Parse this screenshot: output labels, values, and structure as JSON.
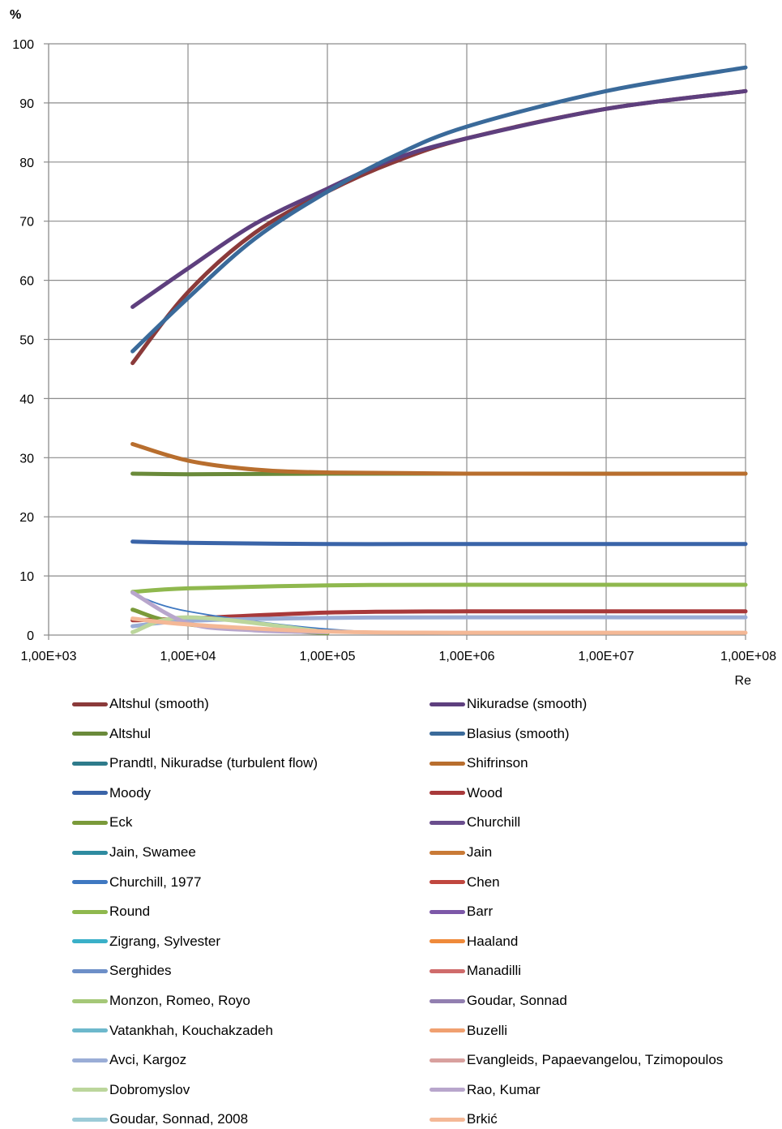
{
  "chart_data": {
    "type": "line",
    "title": "",
    "ylabel": "%",
    "xlabel": "Re",
    "xscale": "log",
    "xlim": [
      1000,
      100000000
    ],
    "ylim": [
      0,
      100
    ],
    "xticks": [
      "1,00E+03",
      "1,00E+04",
      "1,00E+05",
      "1,00E+06",
      "1,00E+07",
      "1,00E+08"
    ],
    "yticks": [
      "0",
      "10",
      "20",
      "30",
      "40",
      "50",
      "60",
      "70",
      "80",
      "90",
      "100"
    ],
    "grid": true,
    "legend_position": "bottom",
    "series": [
      {
        "name": "Altshul (smooth)",
        "color": "#8b3a3a",
        "x": [
          4000,
          10000,
          30000,
          100000,
          300000,
          1000000,
          10000000,
          100000000
        ],
        "y": [
          46,
          58,
          68,
          75,
          80,
          84,
          89,
          92
        ]
      },
      {
        "name": "Nikuradse (smooth)",
        "color": "#5e3f7e",
        "x": [
          4000,
          10000,
          30000,
          100000,
          300000,
          1000000,
          10000000,
          100000000
        ],
        "y": [
          55.5,
          62,
          69.5,
          75.5,
          80.5,
          84,
          89,
          92
        ]
      },
      {
        "name": "Altshul",
        "color": "#6a8a3a",
        "x": [
          4000,
          10000,
          100000,
          1000000,
          100000000
        ],
        "y": [
          27.3,
          27.2,
          27.3,
          27.3,
          27.3
        ]
      },
      {
        "name": "Blasius (smooth)",
        "color": "#3a6a9a",
        "x": [
          4000,
          10000,
          30000,
          100000,
          300000,
          1000000,
          10000000,
          100000000
        ],
        "y": [
          48,
          57,
          67,
          75,
          81,
          86,
          92,
          96
        ]
      },
      {
        "name": "Prandtl, Nikuradse (turbulent flow)",
        "color": "#2e7b8b",
        "x": [],
        "y": []
      },
      {
        "name": "Shifrinson",
        "color": "#b86e2e",
        "x": [
          4000,
          10000,
          30000,
          100000,
          1000000,
          100000000
        ],
        "y": [
          32.3,
          29.5,
          28,
          27.5,
          27.3,
          27.3
        ]
      },
      {
        "name": "Moody",
        "color": "#3a64a8",
        "x": [
          4000,
          10000,
          100000,
          1000000,
          100000000
        ],
        "y": [
          15.8,
          15.6,
          15.4,
          15.4,
          15.4
        ]
      },
      {
        "name": "Wood",
        "color": "#a8393a",
        "x": [
          4000,
          10000,
          100000,
          1000000,
          100000000
        ],
        "y": [
          2.5,
          2.8,
          3.8,
          4,
          4
        ]
      },
      {
        "name": "Eck",
        "color": "#7a9a3a",
        "x": [
          4000,
          10000,
          100000
        ],
        "y": [
          4.3,
          1.8,
          0.3
        ]
      },
      {
        "name": "Churchill",
        "color": "#6a4d8d",
        "x": [],
        "y": []
      },
      {
        "name": "Jain, Swamee",
        "color": "#2e8ba0",
        "x": [],
        "y": []
      },
      {
        "name": "Jain",
        "color": "#c97a36",
        "x": [],
        "y": []
      },
      {
        "name": "Churchill, 1977",
        "color": "#3f78c1",
        "x": [
          4000,
          10000,
          100000,
          1000000,
          100000000
        ],
        "y": [
          7,
          4,
          1,
          0.3,
          0.2
        ]
      },
      {
        "name": "Chen",
        "color": "#c0473f",
        "x": [],
        "y": []
      },
      {
        "name": "Round",
        "color": "#8fb84e",
        "x": [
          4000,
          10000,
          100000,
          1000000,
          100000000
        ],
        "y": [
          7.3,
          7.9,
          8.4,
          8.5,
          8.5
        ]
      },
      {
        "name": "Barr",
        "color": "#7d58a8",
        "x": [],
        "y": []
      },
      {
        "name": "Zigrang, Sylvester",
        "color": "#3ab0c8",
        "x": [],
        "y": []
      },
      {
        "name": "Haaland",
        "color": "#ef8a3a",
        "x": [],
        "y": []
      },
      {
        "name": "Serghides",
        "color": "#6d8fc8",
        "x": [],
        "y": []
      },
      {
        "name": "Manadilli",
        "color": "#cf6b6b",
        "x": [],
        "y": []
      },
      {
        "name": "Monzon, Romeo, Royo",
        "color": "#a5c878",
        "x": [],
        "y": []
      },
      {
        "name": "Goudar, Sonnad",
        "color": "#927fb0",
        "x": [],
        "y": []
      },
      {
        "name": "Vatankhah, Kouchakzadeh",
        "color": "#6db8cc",
        "x": [],
        "y": []
      },
      {
        "name": "Buzelli",
        "color": "#f0a070",
        "x": [],
        "y": []
      },
      {
        "name": "Avci, Kargoz",
        "color": "#9aadd6",
        "x": [
          4000,
          10000,
          100000,
          1000000,
          100000000
        ],
        "y": [
          1.5,
          2.4,
          2.9,
          3,
          3
        ]
      },
      {
        "name": "Evangleids, Papaevangelou, Tzimopoulos",
        "color": "#d8a09e",
        "x": [],
        "y": []
      },
      {
        "name": "Dobromyslov",
        "color": "#bcd69c",
        "x": [
          4000,
          10000,
          100000
        ],
        "y": [
          0.5,
          3,
          0.5
        ]
      },
      {
        "name": "Rao, Kumar",
        "color": "#b8a6cc",
        "x": [
          4000,
          10000,
          30000,
          100000
        ],
        "y": [
          7.2,
          2,
          0.8,
          0.5
        ]
      },
      {
        "name": "Goudar, Sonnad, 2008",
        "color": "#9ccbd8",
        "x": [],
        "y": []
      },
      {
        "name": "Brkić",
        "color": "#f4b896",
        "x": [
          4000,
          10000,
          100000,
          1000000,
          100000000
        ],
        "y": [
          2.8,
          1.8,
          0.6,
          0.4,
          0.4
        ]
      }
    ]
  }
}
